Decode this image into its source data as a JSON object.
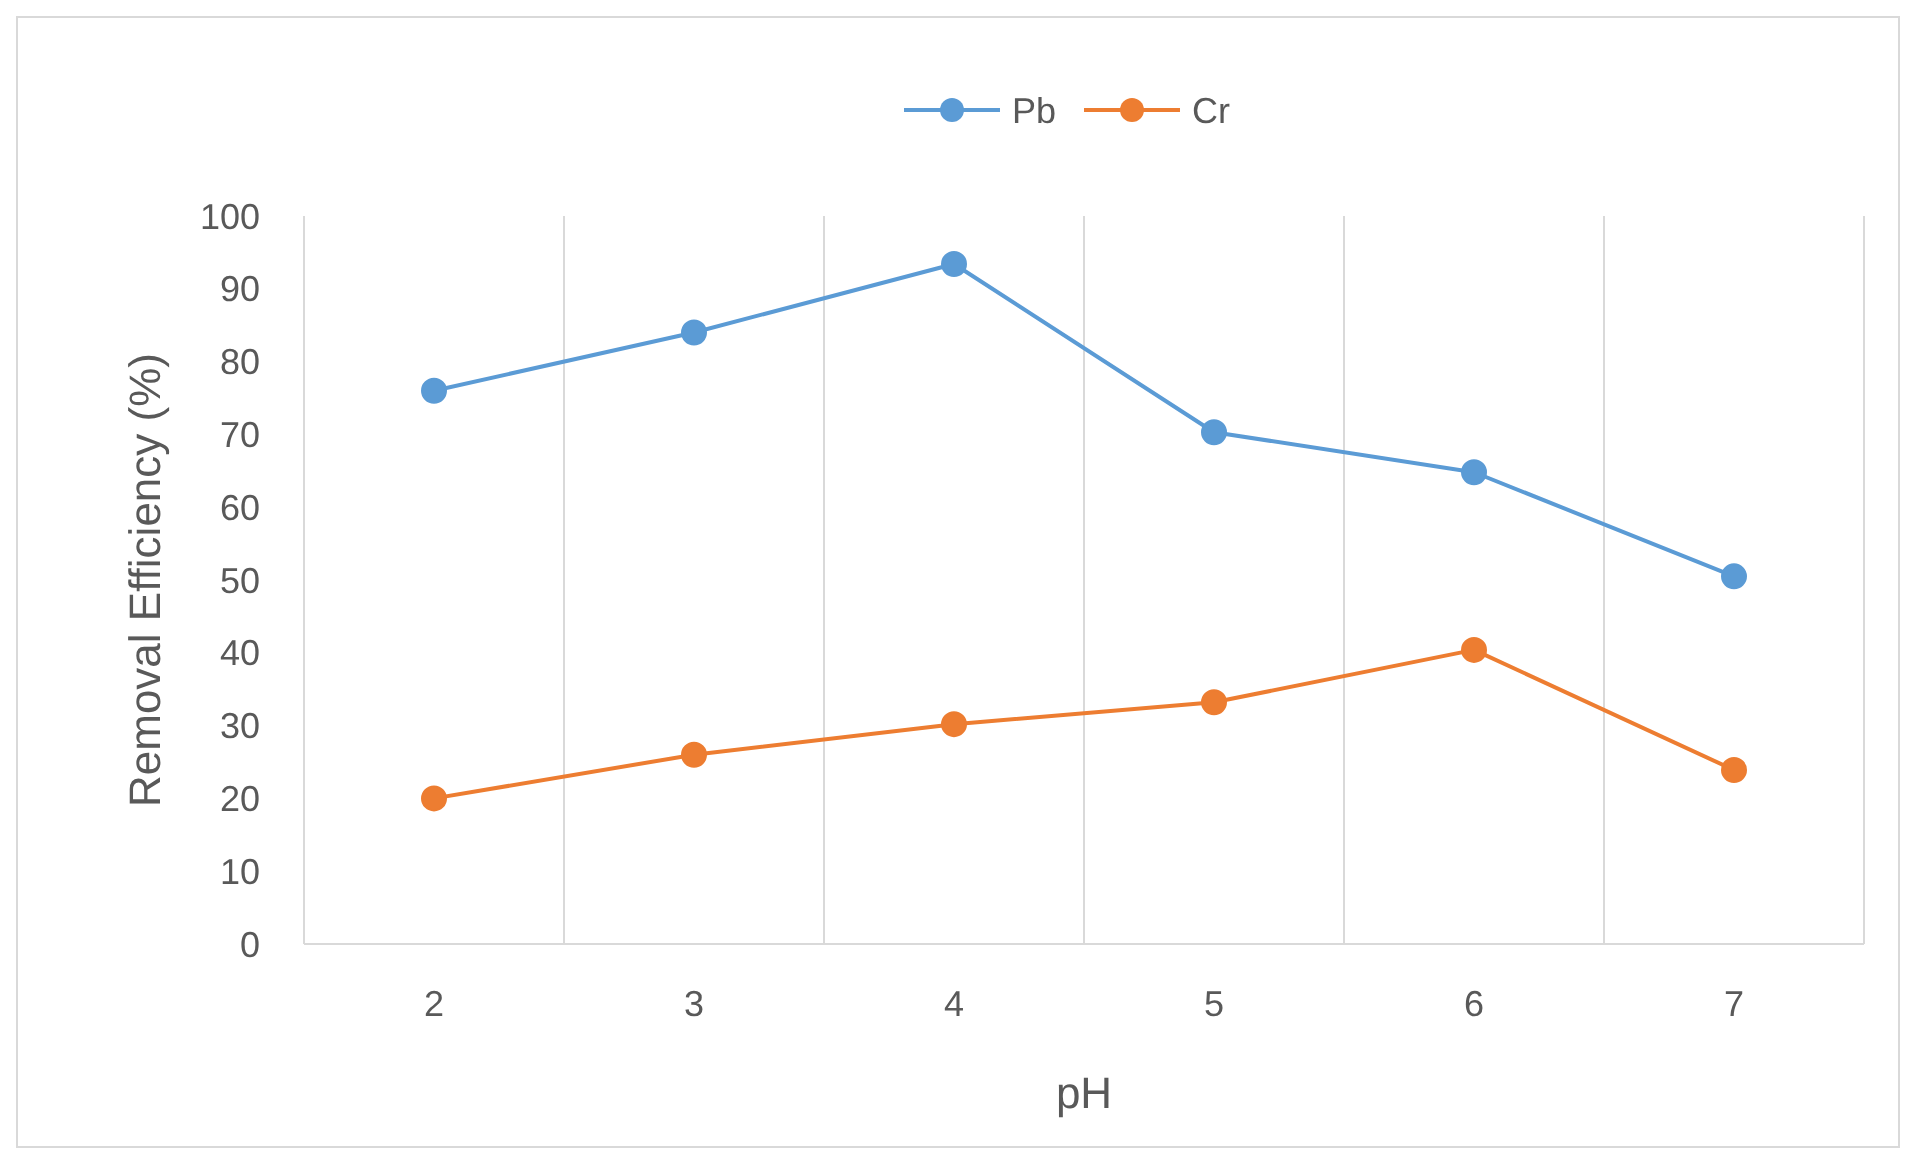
{
  "chart_data": {
    "type": "line",
    "xlabel": "pH",
    "ylabel": "Removal Efficiency (%)",
    "categories": [
      "2",
      "3",
      "4",
      "5",
      "6",
      "7"
    ],
    "series": [
      {
        "name": "Pb",
        "color": "#5b9bd5",
        "values": [
          76,
          84,
          93.4,
          70.3,
          64.8,
          50.5
        ]
      },
      {
        "name": "Cr",
        "color": "#ed7d31",
        "values": [
          20,
          26,
          30.2,
          33.2,
          40.4,
          23.9
        ]
      }
    ],
    "ylim": [
      0,
      100
    ],
    "yticks": [
      0,
      10,
      20,
      30,
      40,
      50,
      60,
      70,
      80,
      90,
      100
    ],
    "grid": "x",
    "legend": "top",
    "marker": "circle",
    "line_style": "solid"
  }
}
